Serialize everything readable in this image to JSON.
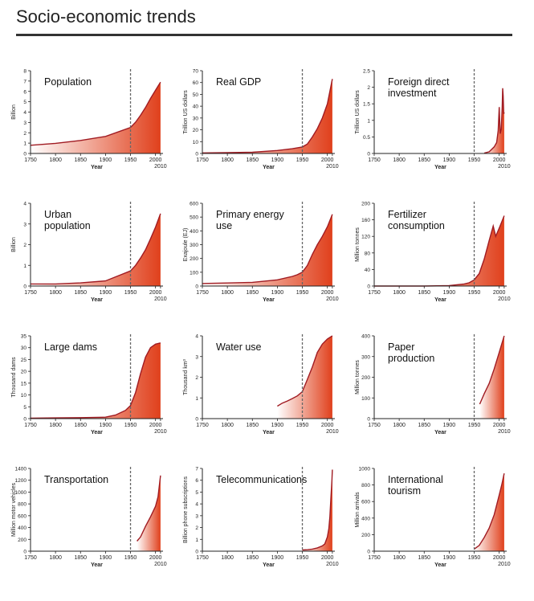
{
  "page": {
    "title": "Socio-economic trends"
  },
  "chart_data": [
    {
      "type": "area",
      "title": "Population",
      "ylabel": "Billion",
      "xlabel": "Year",
      "ylim": [
        0,
        8
      ],
      "yticks": [
        "0",
        "1",
        "2",
        "3",
        "4",
        "5",
        "6",
        "7",
        "8"
      ],
      "xticks": [
        "1750",
        "1800",
        "1850",
        "1900",
        "1950",
        "2000"
      ],
      "end_label": "2010",
      "x": [
        1750,
        1800,
        1850,
        1900,
        1950,
        1960,
        1970,
        1980,
        1990,
        2000,
        2010
      ],
      "y": [
        0.79,
        0.98,
        1.26,
        1.65,
        2.52,
        3.02,
        3.69,
        4.44,
        5.31,
        6.12,
        6.9
      ]
    },
    {
      "type": "area",
      "title": "Real GDP",
      "ylabel": "Trillion US dollars",
      "xlabel": "Year",
      "ylim": [
        0,
        70
      ],
      "yticks": [
        "0",
        "10",
        "20",
        "30",
        "40",
        "50",
        "60",
        "70"
      ],
      "xticks": [
        "1750",
        "1800",
        "1850",
        "1900",
        "1950",
        "2000"
      ],
      "end_label": "2010",
      "x": [
        1750,
        1800,
        1850,
        1900,
        1930,
        1950,
        1960,
        1970,
        1980,
        1990,
        2000,
        2010
      ],
      "y": [
        0.5,
        0.7,
        1.0,
        2.5,
        4.0,
        5.5,
        8.0,
        14,
        21,
        30,
        42,
        63
      ]
    },
    {
      "type": "area",
      "title": "Foreign direct investment",
      "ylabel": "Trillion US dollars",
      "xlabel": "Year",
      "ylim": [
        0,
        2.5
      ],
      "yticks": [
        "0",
        "0.5",
        "1",
        "1.5",
        "2",
        "2.5"
      ],
      "xticks": [
        "1750",
        "1800",
        "1850",
        "1900",
        "1950",
        "2000"
      ],
      "end_label": "2010",
      "x": [
        1970,
        1980,
        1990,
        1995,
        1998,
        2000,
        2002,
        2004,
        2006,
        2007,
        2008,
        2009,
        2010
      ],
      "y": [
        0.01,
        0.05,
        0.2,
        0.33,
        0.69,
        1.4,
        0.6,
        0.73,
        1.4,
        1.97,
        1.74,
        1.2,
        1.24
      ]
    },
    {
      "type": "area",
      "title": "Urban population",
      "ylabel": "Billion",
      "xlabel": "Year",
      "ylim": [
        0,
        4
      ],
      "yticks": [
        "0",
        "1",
        "2",
        "3",
        "4"
      ],
      "xticks": [
        "1750",
        "1800",
        "1850",
        "1900",
        "1950",
        "2000"
      ],
      "end_label": "2010",
      "x": [
        1750,
        1800,
        1850,
        1900,
        1950,
        1960,
        1970,
        1980,
        1990,
        2000,
        2010
      ],
      "y": [
        0.1,
        0.1,
        0.15,
        0.25,
        0.73,
        1.0,
        1.35,
        1.75,
        2.28,
        2.85,
        3.5
      ]
    },
    {
      "type": "area",
      "title": "Primary energy use",
      "ylabel": "Exajoule (EJ)",
      "xlabel": "Year",
      "ylim": [
        0,
        600
      ],
      "yticks": [
        "0",
        "100",
        "200",
        "300",
        "400",
        "500",
        "600"
      ],
      "xticks": [
        "1750",
        "1800",
        "1850",
        "1900",
        "1950",
        "2000"
      ],
      "end_label": "2010",
      "x": [
        1750,
        1800,
        1850,
        1900,
        1930,
        1940,
        1950,
        1960,
        1970,
        1980,
        1990,
        2000,
        2010
      ],
      "y": [
        18,
        22,
        27,
        45,
        70,
        82,
        100,
        150,
        230,
        300,
        360,
        430,
        520
      ]
    },
    {
      "type": "area",
      "title": "Fertilizer consumption",
      "ylabel": "Million tonnes",
      "xlabel": "Year",
      "ylim": [
        0,
        200
      ],
      "yticks": [
        "0",
        "40",
        "80",
        "120",
        "160",
        "200"
      ],
      "xticks": [
        "1750",
        "1800",
        "1850",
        "1900",
        "1950",
        "2000"
      ],
      "end_label": "2010",
      "x": [
        1750,
        1850,
        1900,
        1930,
        1940,
        1950,
        1960,
        1970,
        1980,
        1988,
        1993,
        2000,
        2005,
        2010
      ],
      "y": [
        0,
        0,
        1,
        5,
        8,
        15,
        30,
        65,
        110,
        145,
        120,
        140,
        155,
        170
      ]
    },
    {
      "type": "area",
      "title": "Large dams",
      "ylabel": "Thousand dams",
      "xlabel": "Year",
      "ylim": [
        0,
        35
      ],
      "yticks": [
        "0",
        "5",
        "10",
        "15",
        "20",
        "25",
        "30",
        "35"
      ],
      "xticks": [
        "1750",
        "1800",
        "1850",
        "1900",
        "1950",
        "2000"
      ],
      "end_label": "2010",
      "x": [
        1750,
        1800,
        1850,
        1900,
        1920,
        1940,
        1950,
        1960,
        1970,
        1980,
        1990,
        2000,
        2010
      ],
      "y": [
        0.2,
        0.3,
        0.4,
        0.6,
        1.5,
        3.5,
        5.5,
        11,
        19,
        26,
        30,
        31.5,
        32
      ]
    },
    {
      "type": "area",
      "title": "Water use",
      "ylabel": "Thousand km³",
      "xlabel": "Year",
      "ylim": [
        0,
        4
      ],
      "yticks": [
        "0",
        "1",
        "2",
        "3",
        "4"
      ],
      "xticks": [
        "1750",
        "1800",
        "1850",
        "1900",
        "1950",
        "2000"
      ],
      "end_label": "2010",
      "x": [
        1900,
        1910,
        1920,
        1930,
        1940,
        1950,
        1960,
        1970,
        1980,
        1990,
        2000,
        2010
      ],
      "y": [
        0.6,
        0.75,
        0.85,
        0.97,
        1.1,
        1.3,
        1.9,
        2.5,
        3.2,
        3.6,
        3.85,
        4.0
      ]
    },
    {
      "type": "area",
      "title": "Paper production",
      "ylabel": "Million tonnes",
      "xlabel": "Year",
      "ylim": [
        0,
        400
      ],
      "yticks": [
        "0",
        "100",
        "200",
        "300",
        "400"
      ],
      "xticks": [
        "1750",
        "1800",
        "1850",
        "1900",
        "1950",
        "2000"
      ],
      "end_label": "2010",
      "x": [
        1961,
        1970,
        1980,
        1990,
        2000,
        2010
      ],
      "y": [
        70,
        120,
        170,
        240,
        320,
        400
      ]
    },
    {
      "type": "area",
      "title": "Transportation",
      "ylabel": "Million motor vehicles",
      "xlabel": "Year",
      "ylim": [
        0,
        1400
      ],
      "yticks": [
        "0",
        "200",
        "400",
        "600",
        "800",
        "1000",
        "1200",
        "1400"
      ],
      "xticks": [
        "1750",
        "1800",
        "1850",
        "1900",
        "1950",
        "2000"
      ],
      "end_label": "2010",
      "x": [
        1963,
        1970,
        1980,
        1990,
        2000,
        2005,
        2010
      ],
      "y": [
        170,
        240,
        420,
        580,
        760,
        920,
        1280
      ]
    },
    {
      "type": "area",
      "title": "Telecommunications",
      "ylabel": "Billion phone subscriptions",
      "xlabel": "Year",
      "ylim": [
        0,
        7
      ],
      "yticks": [
        "0",
        "1",
        "2",
        "3",
        "4",
        "5",
        "6",
        "7"
      ],
      "xticks": [
        "1750",
        "1800",
        "1850",
        "1900",
        "1950",
        "2000"
      ],
      "end_label": "2010",
      "x": [
        1950,
        1960,
        1970,
        1980,
        1990,
        1995,
        2000,
        2003,
        2005,
        2007,
        2009,
        2010
      ],
      "y": [
        0.1,
        0.12,
        0.18,
        0.28,
        0.45,
        0.62,
        1.2,
        1.9,
        2.9,
        4.4,
        5.9,
        6.9
      ]
    },
    {
      "type": "area",
      "title": "International tourism",
      "ylabel": "Million arrivals",
      "xlabel": "Year",
      "ylim": [
        0,
        1000
      ],
      "yticks": [
        "0",
        "200",
        "400",
        "600",
        "800",
        "1000"
      ],
      "xticks": [
        "1750",
        "1800",
        "1850",
        "1900",
        "1950",
        "2000"
      ],
      "end_label": "2010",
      "x": [
        1950,
        1960,
        1970,
        1980,
        1990,
        2000,
        2005,
        2010
      ],
      "y": [
        25,
        70,
        165,
        280,
        440,
        680,
        800,
        940
      ]
    }
  ],
  "colors": {
    "line": "#a01b22",
    "fill_dark": "#e0401c",
    "fill_light": "#ffffff",
    "marker": "#666666",
    "axis": "#222222"
  }
}
